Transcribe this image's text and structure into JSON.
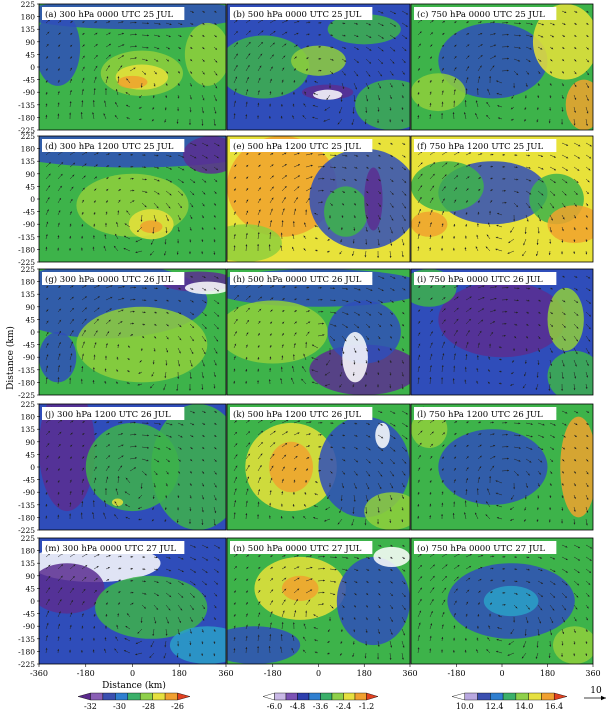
{
  "figure": {
    "ylabel": "Distance (km)",
    "xlabel": "Distance (km)",
    "x_ticks": [
      "-360",
      "-180",
      "0",
      "180",
      "360"
    ],
    "y_ticks": [
      "225",
      "180",
      "135",
      "90",
      "45",
      "0",
      "-45",
      "-90",
      "-135",
      "-180",
      "-225"
    ],
    "vector_reference": "10"
  },
  "panels": [
    {
      "label": "(a) 300 hPa 0000 UTC 25 JUL"
    },
    {
      "label": "(b) 500 hPa 0000 UTC 25 JUL"
    },
    {
      "label": "(c) 750 hPa 0000 UTC 25 JUL"
    },
    {
      "label": "(d) 300 hPa 1200 UTC 25 JUL"
    },
    {
      "label": "(e) 500 hPa 1200 UTC 25 JUL"
    },
    {
      "label": "(f) 750 hPa 1200 UTC 25 JUL"
    },
    {
      "label": "(g) 300 hPa 0000 UTC 26 JUL"
    },
    {
      "label": "(h) 500 hPa 0000 UTC 26 JUL"
    },
    {
      "label": "(i) 750 hPa 0000 UTC 26 JUL"
    },
    {
      "label": "(j) 300 hPa 1200 UTC 26 JUL"
    },
    {
      "label": "(k) 500 hPa 1200 UTC 26 JUL"
    },
    {
      "label": "(l) 750 hPa 1200 UTC 26 JUL"
    },
    {
      "label": "(m) 300 hPa 0000 UTC 27 JUL"
    },
    {
      "label": "(n) 500 hPa 0000 UTC 27 JUL"
    },
    {
      "label": "(o) 750 hPa 0000 UTC 27 JUL"
    }
  ],
  "colorbars": [
    {
      "ticks": [
        "-32",
        "-30",
        "-28",
        "-26"
      ],
      "colors": [
        "#5b2a8c",
        "#8a5fb5",
        "#3a4fb0",
        "#2f7fd0",
        "#3bb06a",
        "#8fd04a",
        "#e6e040",
        "#f0a030",
        "#e04020"
      ]
    },
    {
      "ticks": [
        "-6.0",
        "-4.8",
        "-3.6",
        "-2.4",
        "-1.2"
      ],
      "colors": [
        "#ffffff",
        "#c9b8e6",
        "#7c52b5",
        "#2d3fae",
        "#2f7fd0",
        "#3bb06a",
        "#8fd04a",
        "#e6e040",
        "#f0a030",
        "#e04020"
      ]
    },
    {
      "ticks": [
        "10.0",
        "12.4",
        "14.0",
        "16.4"
      ],
      "colors": [
        "#ffffff",
        "#b9a8e0",
        "#3a4fb0",
        "#2f7fd0",
        "#3bb06a",
        "#8fd04a",
        "#e6e040",
        "#f0a030",
        "#e04020"
      ]
    }
  ],
  "colors": {
    "purple": "#5a2e90",
    "blue": "#2f4dba",
    "cyan": "#2aa0c8",
    "green": "#3db34a",
    "lightgreen": "#8fcf3c",
    "yellow": "#e8e23a",
    "orange": "#f0a22e",
    "red": "#e0452a",
    "white": "#ffffff"
  }
}
